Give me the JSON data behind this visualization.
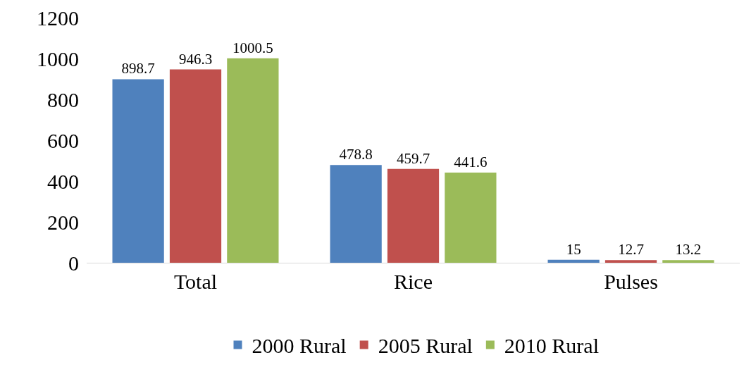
{
  "chart_data": {
    "type": "bar",
    "categories": [
      "Total",
      "Rice",
      "Pulses"
    ],
    "series": [
      {
        "name": "2000 Rural",
        "color": "#4f81bd",
        "values": [
          898.7,
          478.8,
          15
        ]
      },
      {
        "name": "2005 Rural",
        "color": "#c0504d",
        "values": [
          946.3,
          459.7,
          12.7
        ]
      },
      {
        "name": "2010 Rural",
        "color": "#9bbb59",
        "values": [
          1000.5,
          441.6,
          13.2
        ]
      }
    ],
    "ylim": [
      0,
      1200
    ],
    "yticks": [
      0,
      200,
      400,
      600,
      800,
      1000,
      1200
    ],
    "grid": false,
    "legend": "bottom",
    "data_labels": true
  }
}
